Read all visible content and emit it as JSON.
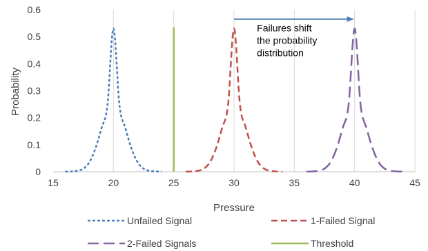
{
  "chart_data": {
    "type": "line",
    "xlabel": "Pressure",
    "ylabel": "Probability",
    "xlim": [
      15,
      45
    ],
    "ylim": [
      0,
      0.6
    ],
    "xticks": [
      15,
      20,
      25,
      30,
      35,
      40,
      45
    ],
    "yticks": [
      0,
      0.1,
      0.2,
      0.3,
      0.4,
      0.5,
      0.6
    ],
    "grid": "vertical",
    "legend_position": "bottom",
    "series": [
      {
        "name": "Unfailed Signal",
        "color": "#4a7ebb",
        "dash": "short-dash",
        "x": [
          16,
          16.5,
          17,
          17.5,
          18,
          18.5,
          19,
          19.5,
          20,
          20.5,
          21,
          21.5,
          22,
          22.5,
          23,
          23.5,
          24
        ],
        "y": [
          0.0002,
          0.001,
          0.0033,
          0.0112,
          0.035,
          0.0852,
          0.16,
          0.245,
          0.53,
          0.245,
          0.16,
          0.0852,
          0.035,
          0.0112,
          0.0033,
          0.001,
          0.0002
        ]
      },
      {
        "name": "1-Failed Signal",
        "color": "#c0504d",
        "dash": "dash",
        "x": [
          26,
          26.5,
          27,
          27.5,
          28,
          28.5,
          29,
          29.5,
          30,
          30.5,
          31,
          31.5,
          32,
          32.5,
          33,
          33.5,
          34
        ],
        "y": [
          0.0002,
          0.001,
          0.0033,
          0.0112,
          0.035,
          0.0852,
          0.16,
          0.245,
          0.53,
          0.245,
          0.16,
          0.0852,
          0.035,
          0.0112,
          0.0033,
          0.001,
          0.0002
        ]
      },
      {
        "name": "2-Failed Signals",
        "color": "#8064a2",
        "dash": "long-dash",
        "x": [
          36,
          36.5,
          37,
          37.5,
          38,
          38.5,
          39,
          39.5,
          40,
          40.5,
          41,
          41.5,
          42,
          42.5,
          43,
          43.5,
          44
        ],
        "y": [
          0.0002,
          0.001,
          0.0033,
          0.0112,
          0.035,
          0.0852,
          0.16,
          0.245,
          0.53,
          0.245,
          0.16,
          0.0852,
          0.035,
          0.0112,
          0.0033,
          0.001,
          0.0002
        ]
      },
      {
        "name": "Threshold",
        "color": "#9bbb59",
        "dash": "solid",
        "x": [
          25,
          25
        ],
        "y": [
          0,
          0.535
        ]
      }
    ],
    "annotation": {
      "lines": [
        "Failures shift",
        "the probability",
        "distribution"
      ],
      "arrow_from": [
        30,
        0.565
      ],
      "arrow_to": [
        40,
        0.565
      ],
      "text_anchor": [
        31.9,
        0.52
      ],
      "arrow_color": "#4a7ebb"
    }
  }
}
